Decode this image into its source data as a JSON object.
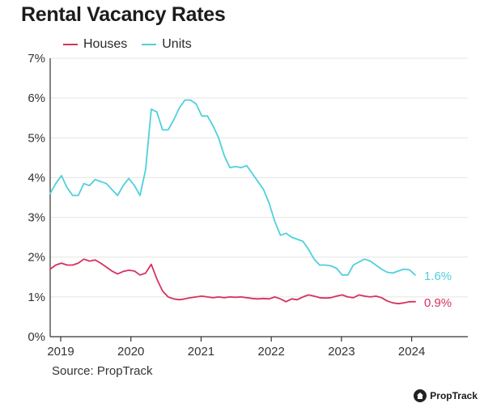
{
  "colors": {
    "houses": "#d6325f",
    "units": "#4fd0dc",
    "grid": "#e4e4e4",
    "axis": "#333333"
  },
  "footer": {
    "source": "Source: PropTrack",
    "brand": "PropTrack",
    "brand_icon": "house-logo-icon"
  },
  "chart_data": {
    "type": "line",
    "title": "Rental Vacancy Rates",
    "xlabel": "",
    "ylabel": "",
    "xlim": [
      2018.85,
      2024.8
    ],
    "ylim": [
      0,
      7
    ],
    "x_ticks": [
      2019,
      2020,
      2021,
      2022,
      2023,
      2024
    ],
    "x_tick_labels": [
      "2019",
      "2020",
      "2021",
      "2022",
      "2023",
      "2024"
    ],
    "y_ticks": [
      0,
      1,
      2,
      3,
      4,
      5,
      6,
      7
    ],
    "y_tick_labels": [
      "0%",
      "1%",
      "2%",
      "3%",
      "4%",
      "5%",
      "6%",
      "7%"
    ],
    "grid": "horizontal",
    "legend": "top-left",
    "end_labels": {
      "houses": "0.9%",
      "units": "1.6%"
    },
    "series": [
      {
        "key": "houses",
        "name": "Houses",
        "x": [
          2018.85,
          2018.93,
          2019.01,
          2019.09,
          2019.17,
          2019.25,
          2019.33,
          2019.41,
          2019.49,
          2019.57,
          2019.65,
          2019.73,
          2019.81,
          2019.89,
          2019.97,
          2020.05,
          2020.13,
          2020.21,
          2020.29,
          2020.37,
          2020.45,
          2020.53,
          2020.61,
          2020.69,
          2020.77,
          2020.85,
          2020.93,
          2021.01,
          2021.09,
          2021.17,
          2021.25,
          2021.33,
          2021.41,
          2021.49,
          2021.57,
          2021.65,
          2021.73,
          2021.81,
          2021.89,
          2021.97,
          2022.05,
          2022.13,
          2022.21,
          2022.29,
          2022.37,
          2022.45,
          2022.53,
          2022.61,
          2022.69,
          2022.77,
          2022.85,
          2022.93,
          2023.01,
          2023.09,
          2023.17,
          2023.25,
          2023.33,
          2023.41,
          2023.49,
          2023.57,
          2023.65,
          2023.73,
          2023.81,
          2023.89,
          2023.97,
          2024.05
        ],
        "values": [
          1.7,
          1.8,
          1.85,
          1.8,
          1.8,
          1.85,
          1.95,
          1.9,
          1.93,
          1.85,
          1.75,
          1.65,
          1.58,
          1.64,
          1.67,
          1.65,
          1.55,
          1.6,
          1.82,
          1.45,
          1.15,
          1.0,
          0.95,
          0.93,
          0.95,
          0.98,
          1.0,
          1.02,
          1.0,
          0.98,
          1.0,
          0.98,
          1.0,
          0.99,
          1.0,
          0.98,
          0.96,
          0.95,
          0.96,
          0.95,
          1.0,
          0.95,
          0.88,
          0.95,
          0.93,
          1.0,
          1.05,
          1.02,
          0.98,
          0.97,
          0.98,
          1.02,
          1.05,
          1.0,
          0.98,
          1.05,
          1.02,
          1.0,
          1.02,
          0.98,
          0.9,
          0.85,
          0.83,
          0.85,
          0.88,
          0.88
        ]
      },
      {
        "key": "units",
        "name": "Units",
        "x": [
          2018.85,
          2018.93,
          2019.01,
          2019.09,
          2019.17,
          2019.25,
          2019.33,
          2019.41,
          2019.49,
          2019.57,
          2019.65,
          2019.73,
          2019.81,
          2019.89,
          2019.97,
          2020.05,
          2020.13,
          2020.21,
          2020.29,
          2020.37,
          2020.45,
          2020.53,
          2020.61,
          2020.69,
          2020.77,
          2020.85,
          2020.93,
          2021.01,
          2021.09,
          2021.17,
          2021.25,
          2021.33,
          2021.41,
          2021.49,
          2021.57,
          2021.65,
          2021.73,
          2021.81,
          2021.89,
          2021.97,
          2022.05,
          2022.13,
          2022.21,
          2022.29,
          2022.37,
          2022.45,
          2022.53,
          2022.61,
          2022.69,
          2022.77,
          2022.85,
          2022.93,
          2023.01,
          2023.09,
          2023.17,
          2023.25,
          2023.33,
          2023.41,
          2023.49,
          2023.57,
          2023.65,
          2023.73,
          2023.81,
          2023.89,
          2023.97,
          2024.05
        ],
        "values": [
          3.6,
          3.85,
          4.05,
          3.75,
          3.55,
          3.55,
          3.85,
          3.8,
          3.95,
          3.9,
          3.85,
          3.7,
          3.55,
          3.8,
          3.98,
          3.8,
          3.55,
          4.2,
          5.72,
          5.65,
          5.2,
          5.2,
          5.45,
          5.75,
          5.95,
          5.95,
          5.85,
          5.55,
          5.55,
          5.3,
          5.0,
          4.55,
          4.25,
          4.28,
          4.25,
          4.3,
          4.1,
          3.9,
          3.7,
          3.35,
          2.9,
          2.55,
          2.6,
          2.5,
          2.45,
          2.4,
          2.2,
          1.95,
          1.8,
          1.8,
          1.78,
          1.72,
          1.55,
          1.55,
          1.8,
          1.88,
          1.95,
          1.9,
          1.8,
          1.7,
          1.62,
          1.6,
          1.65,
          1.7,
          1.68,
          1.55
        ]
      }
    ]
  }
}
